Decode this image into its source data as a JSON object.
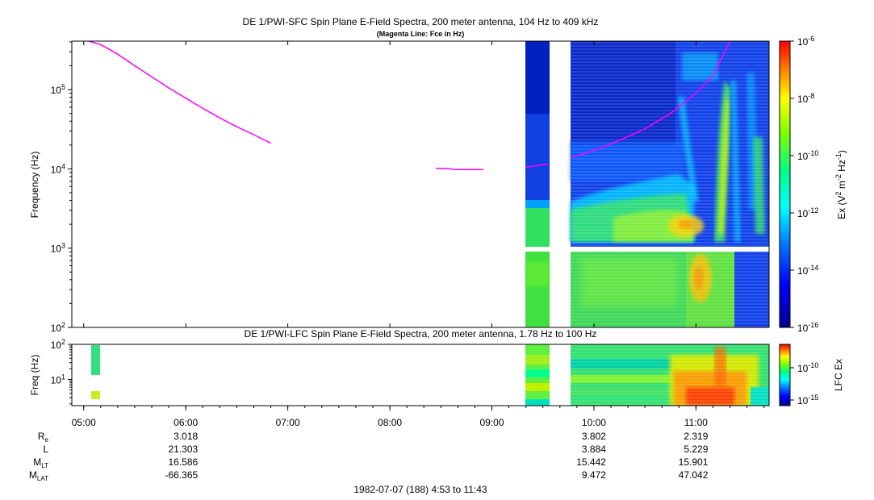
{
  "header": {
    "title": "DE 1/PWI-SFC  Spin Plane E-Field Spectra, 200 meter antenna, 104 Hz to 409 kHz",
    "subtitle": "(Magenta Line: Fce in Hz)"
  },
  "top_panel": {
    "ylabel": "Frequency (Hz)",
    "colorbar_label_parts": [
      "Ex (V",
      "2",
      " m",
      "-2",
      " Hz",
      "-1",
      ")"
    ]
  },
  "bottom_panel": {
    "title": "DE 1/PWI-LFC  Spin Plane E-Field Spectra, 200 meter antenna, 1.78 Hz to 100 Hz",
    "ylabel": "Freq (Hz)",
    "colorbar_label": "LFC Ex"
  },
  "footer": {
    "date_range": "1982-07-07 (188) 4:53 to 11:43"
  },
  "ephemeris": {
    "rows": [
      {
        "label": "R",
        "sub": "e",
        "values": [
          "3.018",
          "3.802",
          "2.319"
        ]
      },
      {
        "label": "L",
        "sub": "",
        "values": [
          "21.303",
          "3.884",
          "5.229"
        ]
      },
      {
        "label": "M",
        "sub": "LT",
        "values": [
          "16.586",
          "15.442",
          "15.901"
        ]
      },
      {
        "label": "M",
        "sub": "LAT",
        "values": [
          "-66.365",
          "9.472",
          "47.042"
        ]
      }
    ],
    "times": [
      "06:00",
      "10:00",
      "11:00"
    ]
  },
  "colors": {
    "fce_line": "#ff00ff",
    "colormap": [
      "#00008b",
      "#0000ff",
      "#0080ff",
      "#00ffff",
      "#00ff80",
      "#80ff00",
      "#ffff00",
      "#ff8000",
      "#ff0000"
    ]
  },
  "chart_data": [
    {
      "type": "heatmap",
      "title": "DE 1/PWI-SFC  Spin Plane E-Field Spectra, 200 meter antenna, 104 Hz to 409 kHz",
      "subtitle": "(Magenta Line: Fce in Hz)",
      "xlabel": "",
      "ylabel": "Frequency (Hz)",
      "yscale": "log",
      "ylim": [
        100,
        409000
      ],
      "xlim": [
        "04:53",
        "11:43"
      ],
      "x_ticks": [
        "05:00",
        "06:00",
        "07:00",
        "08:00",
        "09:00",
        "10:00",
        "11:00"
      ],
      "y_ticks": [
        100,
        1000,
        10000,
        100000
      ],
      "y_tick_labels": [
        [
          "10",
          "2"
        ],
        [
          "10",
          "3"
        ],
        [
          "10",
          "4"
        ],
        [
          "10",
          "5"
        ]
      ],
      "colorbar": {
        "label": "Ex (V2 m-2 Hz-1)",
        "scale": "log",
        "range": [
          1e-16,
          1e-06
        ],
        "tick_labels": [
          [
            "10",
            "-6"
          ],
          [
            "10",
            "-8"
          ],
          [
            "10",
            "-10"
          ],
          [
            "10",
            "-12"
          ],
          [
            "10",
            "-14"
          ],
          [
            "10",
            "-16"
          ]
        ],
        "tick_values": [
          1e-06,
          1e-08,
          1e-10,
          1e-12,
          1e-14,
          1e-16
        ]
      },
      "data_coverage": [
        [
          "09:20",
          "09:35"
        ],
        [
          "09:47",
          "11:43"
        ]
      ],
      "fce_line": {
        "name": "Fce",
        "segments": [
          {
            "time": [
              "05:03",
              "05:10",
              "05:20",
              "05:30",
              "05:40",
              "05:50",
              "06:00",
              "06:10",
              "06:20",
              "06:30",
              "06:40",
              "06:50"
            ],
            "hz": [
              409000,
              370000,
              280000,
              200000,
              145000,
              105000,
              78000,
              58000,
              44000,
              34000,
              27000,
              21000
            ]
          },
          {
            "time": [
              "08:27",
              "08:35",
              "08:37",
              "08:55"
            ],
            "hz": [
              10200,
              10100,
              9800,
              9800
            ]
          },
          {
            "time": [
              "09:20",
              "09:33"
            ],
            "hz": [
              10500,
              11500
            ]
          },
          {
            "time": [
              "09:47",
              "10:00",
              "10:15",
              "10:30",
              "10:45",
              "11:00",
              "11:10",
              "11:20"
            ],
            "hz": [
              14000,
              17000,
              23000,
              32000,
              50000,
              90000,
              150000,
              409000
            ]
          }
        ]
      }
    },
    {
      "type": "heatmap",
      "title": "DE 1/PWI-LFC  Spin Plane E-Field Spectra, 200 meter antenna, 1.78 Hz to 100 Hz",
      "xlabel": "",
      "ylabel": "Freq (Hz)",
      "yscale": "log",
      "ylim": [
        1.78,
        100
      ],
      "xlim": [
        "04:53",
        "11:43"
      ],
      "x_ticks": [
        "05:00",
        "06:00",
        "07:00",
        "08:00",
        "09:00",
        "10:00",
        "11:00"
      ],
      "y_ticks": [
        10,
        100
      ],
      "y_tick_labels": [
        [
          "10",
          "1"
        ],
        [
          "10",
          "2"
        ]
      ],
      "colorbar": {
        "label": "LFC Ex",
        "scale": "log",
        "tick_labels": [
          [
            "10",
            "-10"
          ],
          [
            "10",
            "-15"
          ]
        ],
        "tick_values": [
          1e-10,
          1e-15
        ]
      },
      "data_coverage": [
        [
          "05:06",
          "05:11"
        ],
        [
          "09:20",
          "09:35"
        ],
        [
          "09:47",
          "11:43"
        ]
      ]
    }
  ]
}
